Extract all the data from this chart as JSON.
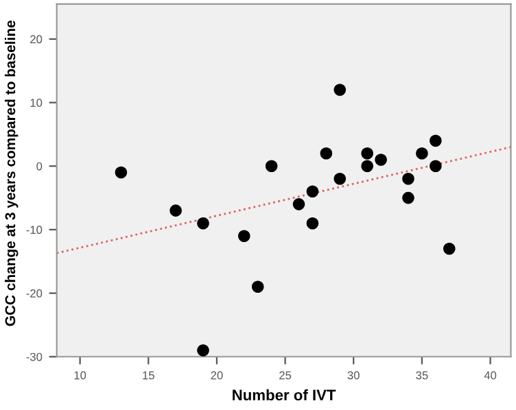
{
  "chart_data": {
    "type": "scatter",
    "xlabel": "Number of IVT",
    "ylabel": "GCC change at 3 years compared to baseline",
    "xlim": [
      8.3,
      41.5
    ],
    "ylim": [
      -30,
      25.5
    ],
    "xticks": [
      10,
      15,
      20,
      25,
      30,
      35,
      40
    ],
    "yticks": [
      -30,
      -20,
      -10,
      0,
      10,
      20
    ],
    "grid": false,
    "marker": "circle",
    "series": [
      {
        "color": "#000000",
        "x": [
          13,
          17,
          19,
          19,
          22,
          23,
          24,
          26,
          27,
          27,
          28,
          29,
          29,
          31,
          31,
          32,
          34,
          34,
          35,
          36,
          36,
          37
        ],
        "values": [
          -1,
          -7,
          -9,
          -29,
          -11,
          -19,
          0,
          -6,
          -4,
          -9,
          2,
          12,
          -2,
          2,
          0,
          1,
          -2,
          -5,
          2,
          4,
          0,
          -13
        ]
      },
      {
        "type": "line",
        "color": "#e06060",
        "line_style": "dotted",
        "marker": "none",
        "x": [
          8.3,
          41.5
        ],
        "values": [
          -13.7,
          3
        ]
      }
    ]
  }
}
